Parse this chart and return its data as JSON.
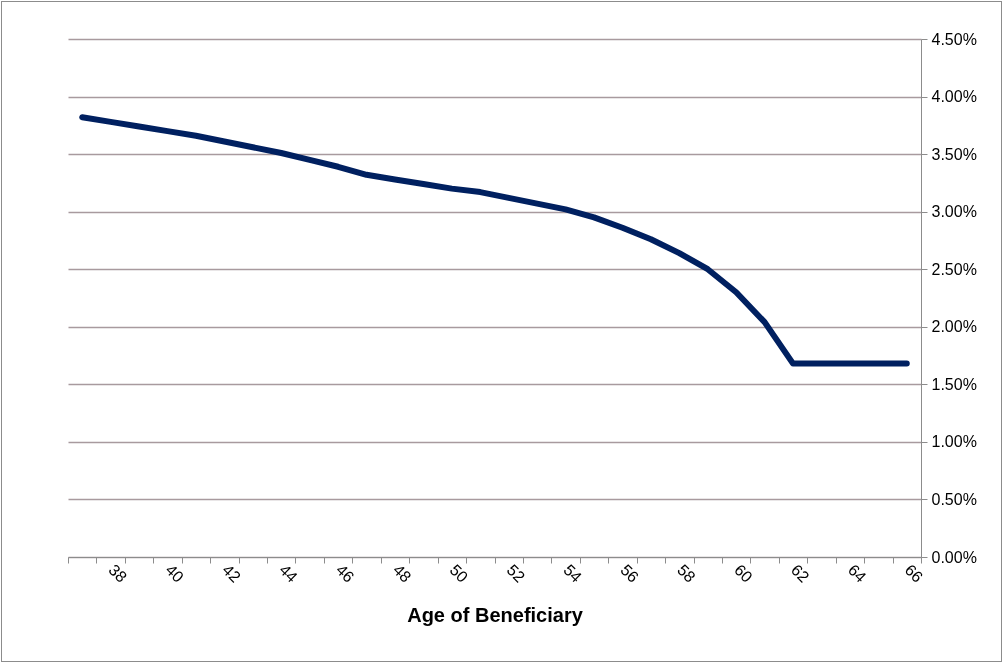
{
  "chart_data": {
    "type": "line",
    "xlabel": "Age of Beneficiary",
    "categories": [
      null,
      "38",
      null,
      "40",
      null,
      "42",
      null,
      "44",
      null,
      "46",
      null,
      "48",
      null,
      "50",
      null,
      "52",
      null,
      "54",
      null,
      "56",
      null,
      "58",
      null,
      "60",
      null,
      "62",
      null,
      "64",
      null,
      "66"
    ],
    "series": [
      {
        "color": "#002060",
        "values": [
          3.82,
          3.78,
          3.74,
          3.7,
          3.66,
          3.61,
          3.56,
          3.51,
          3.45,
          3.39,
          3.32,
          3.28,
          3.24,
          3.2,
          3.17,
          3.12,
          3.07,
          3.02,
          2.95,
          2.86,
          2.76,
          2.64,
          2.5,
          2.3,
          2.04,
          1.68,
          1.68,
          1.68,
          1.68,
          1.68
        ]
      }
    ],
    "ylim": [
      0,
      4.5
    ],
    "yticks": [
      {
        "value": 0,
        "label": "0.00%"
      },
      {
        "value": 0.5,
        "label": "0.50%"
      },
      {
        "value": 1,
        "label": "1.00%"
      },
      {
        "value": 1.5,
        "label": "1.50%"
      },
      {
        "value": 2,
        "label": "2.00%"
      },
      {
        "value": 2.5,
        "label": "2.50%"
      },
      {
        "value": 3,
        "label": "3.00%"
      },
      {
        "value": 3.5,
        "label": "3.50%"
      },
      {
        "value": 4,
        "label": "4.00%"
      },
      {
        "value": 4.5,
        "label": "4.50%"
      }
    ],
    "grid": "y",
    "marker": "none",
    "line_style": "solid"
  }
}
